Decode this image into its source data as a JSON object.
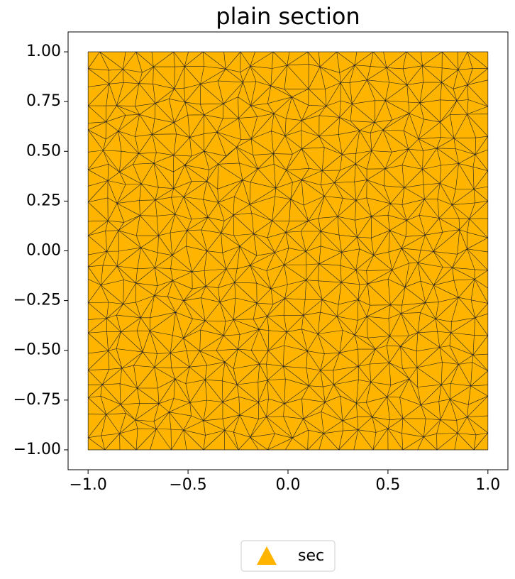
{
  "chart_data": {
    "type": "mesh",
    "title": "plain section",
    "series": [
      {
        "name": "sec",
        "color": "#ffb400",
        "x": [
          -1,
          1
        ],
        "y": [
          -1,
          1
        ]
      }
    ],
    "xlim": [
      -1.1,
      1.1
    ],
    "ylim": [
      -1.1,
      1.1
    ],
    "xticks": [
      {
        "value": -1,
        "label": "−1.0"
      },
      {
        "value": -0.5,
        "label": "−0.5"
      },
      {
        "value": 0,
        "label": "0.0"
      },
      {
        "value": 0.5,
        "label": "0.5"
      },
      {
        "value": 1,
        "label": "1.0"
      }
    ],
    "yticks": [
      {
        "value": -1,
        "label": "−1.00"
      },
      {
        "value": -0.75,
        "label": "−0.75"
      },
      {
        "value": -0.5,
        "label": "−0.50"
      },
      {
        "value": -0.25,
        "label": "−0.25"
      },
      {
        "value": 0,
        "label": "0.00"
      },
      {
        "value": 0.25,
        "label": "0.25"
      },
      {
        "value": 0.5,
        "label": "0.50"
      },
      {
        "value": 0.75,
        "label": "0.75"
      },
      {
        "value": 1,
        "label": "1.00"
      }
    ],
    "legend": "bottom"
  }
}
